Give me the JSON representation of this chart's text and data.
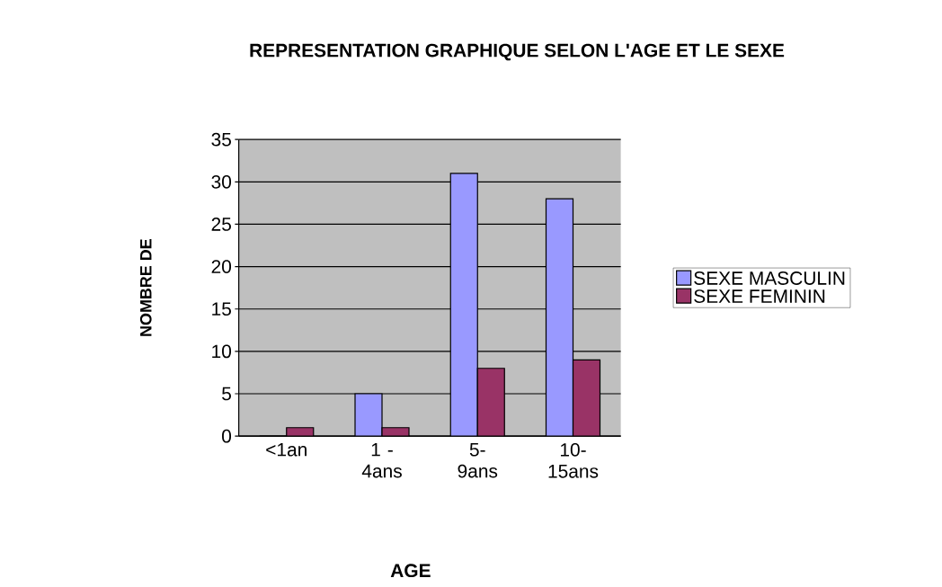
{
  "chart_data": {
    "type": "bar",
    "title": "REPRESENTATION GRAPHIQUE SELON L'AGE ET LE SEXE",
    "xlabel": "AGE",
    "ylabel": "NOMBRE DE",
    "categories": [
      "<1an",
      "1 - 4ans",
      "5- 9ans",
      "10- 15ans"
    ],
    "series": [
      {
        "name": "SEXE MASCULIN",
        "color": "#9999ff",
        "values": [
          0,
          5,
          31,
          28
        ]
      },
      {
        "name": "SEXE FEMININ",
        "color": "#993366",
        "values": [
          1,
          1,
          8,
          9
        ]
      }
    ],
    "ylim": [
      0,
      35
    ],
    "yticks": [
      0,
      5,
      10,
      15,
      20,
      25,
      30,
      35
    ],
    "grid": "y",
    "legend": "right"
  }
}
